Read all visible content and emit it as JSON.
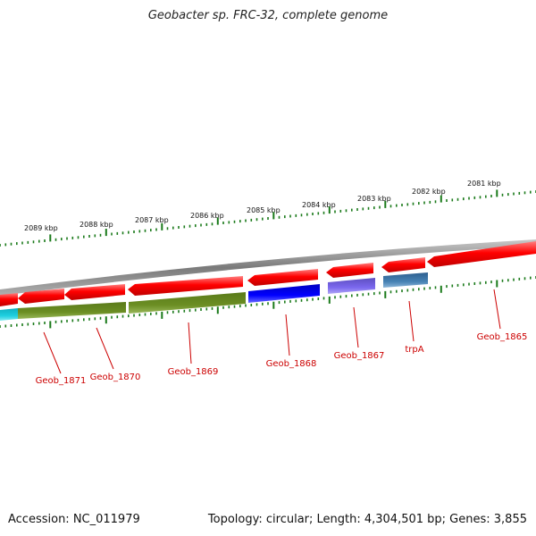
{
  "title": "Geobacter sp. FRC-32, complete genome",
  "footer": {
    "accession": "Accession: NC_011979",
    "summary": "Topology: circular; Length: 4,304,501 bp; Genes: 3,855"
  },
  "colors": {
    "backbone": "#8a8a8a",
    "tick": "#1a7a1a",
    "label": "#cc0000",
    "forward": "#ff1010",
    "orf_lime": "#6b8e23",
    "orf_blue": "#0000ee",
    "orf_slate": "#7b68ee",
    "orf_steel": "#4682b4",
    "orf_cyan": "#1ecfe0"
  },
  "ruler": {
    "kbp_labels": [
      "2089 kbp",
      "2088 kbp",
      "2087 kbp",
      "2086 kbp",
      "2085 kbp",
      "2084 kbp",
      "2083 kbp",
      "2082 kbp",
      "2081 kbp"
    ]
  },
  "genes": [
    {
      "name": "Geob_1871"
    },
    {
      "name": "Geob_1870"
    },
    {
      "name": "Geob_1869"
    },
    {
      "name": "Geob_1868"
    },
    {
      "name": "Geob_1867"
    },
    {
      "name": "trpA"
    },
    {
      "name": "Geob_1865"
    }
  ]
}
